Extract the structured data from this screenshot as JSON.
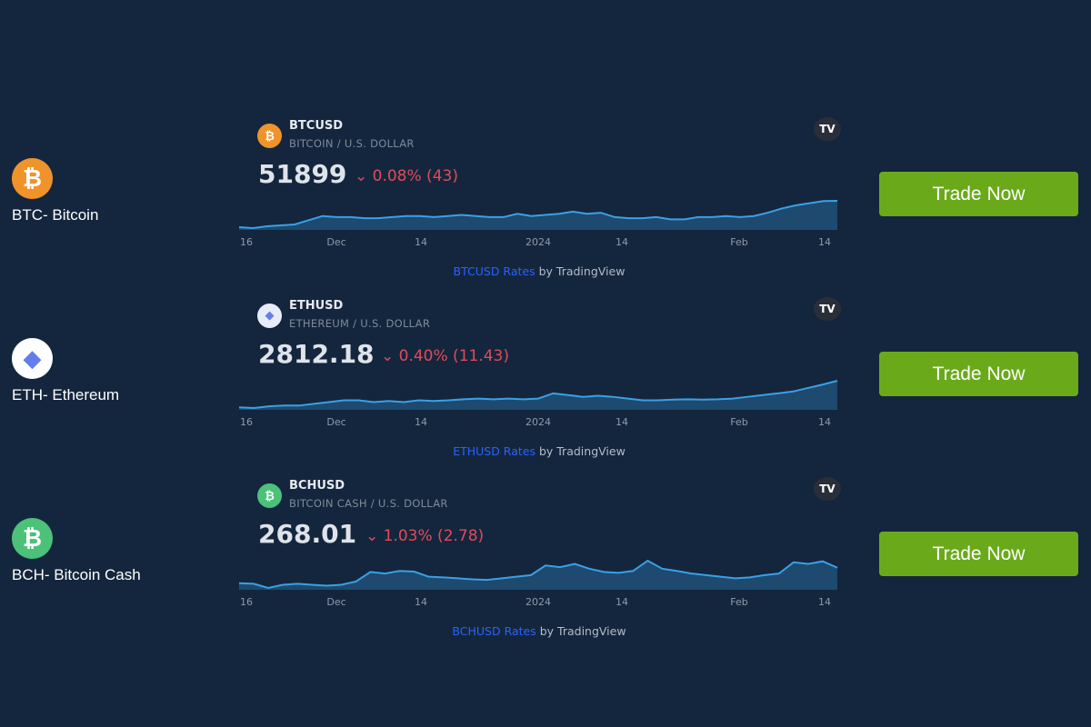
{
  "colors": {
    "background": "#14263d",
    "line": "#3aa0e8",
    "area": "#1d4a6e",
    "negative": "#e04b5a",
    "button": "#6aaa1a",
    "link": "#2962ff"
  },
  "x_ticks": [
    "16",
    "Dec",
    "14",
    "2024",
    "14",
    "Feb",
    "14"
  ],
  "rows": [
    {
      "label": "BTC- Bitcoin",
      "icon": "bitcoin-icon",
      "icon_glyph": "₿",
      "icon_color": "#f0932b",
      "ticker": "BTCUSD",
      "description": "BITCOIN / U.S. DOLLAR",
      "price": "51899",
      "change": "⌄ 0.08% (43)",
      "attribution_link": "BTCUSD Rates",
      "attribution_suffix": " by TradingView",
      "tv_logo": "TV",
      "button": "Trade Now",
      "chart_data": {
        "type": "area",
        "values": [
          37500,
          37000,
          38000,
          38500,
          39000,
          41300,
          43600,
          43000,
          43000,
          42400,
          42400,
          43000,
          43600,
          43600,
          43000,
          43600,
          44200,
          43600,
          43000,
          43000,
          44800,
          43600,
          44200,
          44800,
          46000,
          44800,
          45400,
          43000,
          42400,
          42400,
          43000,
          41800,
          41800,
          43000,
          43000,
          43600,
          43000,
          43600,
          45400,
          47700,
          49400,
          50600,
          51800,
          51900
        ]
      }
    },
    {
      "label": "ETH- Ethereum",
      "icon": "ethereum-icon",
      "icon_glyph": "◆",
      "icon_color": "#ffffff",
      "ticker": "ETHUSD",
      "description": "ETHEREUM / U.S. DOLLAR",
      "price": "2812.18",
      "change": "⌄ 0.40% (11.43)",
      "attribution_link": "ETHUSD Rates",
      "attribution_suffix": " by TradingView",
      "tv_logo": "TV",
      "button": "Trade Now",
      "chart_data": {
        "type": "area",
        "values": [
          2050,
          2030,
          2080,
          2100,
          2100,
          2150,
          2200,
          2250,
          2250,
          2200,
          2230,
          2200,
          2250,
          2230,
          2250,
          2280,
          2300,
          2280,
          2300,
          2280,
          2300,
          2450,
          2400,
          2350,
          2380,
          2350,
          2300,
          2250,
          2250,
          2270,
          2280,
          2270,
          2280,
          2300,
          2350,
          2400,
          2450,
          2500,
          2600,
          2700,
          2810
        ]
      }
    },
    {
      "label": "BCH- Bitcoin Cash",
      "icon": "bitcoin-cash-icon",
      "icon_glyph": "₿",
      "icon_color": "#4cc17a",
      "ticker": "BCHUSD",
      "description": "BITCOIN CASH / U.S. DOLLAR",
      "price": "268.01",
      "change": "⌄ 1.03% (2.78)",
      "attribution_link": "BCHUSD Rates",
      "attribution_suffix": " by TradingView",
      "tv_logo": "TV",
      "button": "Trade Now",
      "chart_data": {
        "type": "area",
        "values": [
          220,
          218,
          205,
          215,
          218,
          215,
          212,
          215,
          225,
          255,
          250,
          258,
          256,
          240,
          238,
          235,
          232,
          230,
          235,
          240,
          245,
          275,
          270,
          280,
          265,
          255,
          252,
          258,
          290,
          265,
          258,
          250,
          245,
          240,
          235,
          238,
          245,
          250,
          285,
          280,
          288,
          268
        ]
      }
    }
  ]
}
